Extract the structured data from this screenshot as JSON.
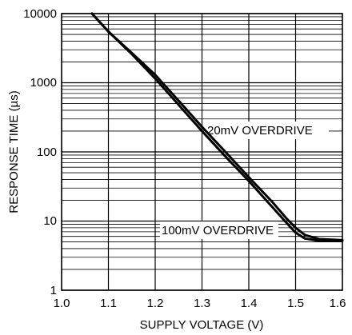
{
  "chart_data": {
    "type": "line",
    "xlabel": "SUPPLY VOLTAGE (V)",
    "ylabel": "RESPONSE TIME (µs)",
    "xlim": [
      1.0,
      1.6
    ],
    "ylim": [
      1,
      10000
    ],
    "yscale": "log",
    "grid": true,
    "x_ticks": [
      "1.0",
      "1.1",
      "1.2",
      "1.3",
      "1.4",
      "1.5",
      "1.6"
    ],
    "y_ticks": [
      "1",
      "10",
      "100",
      "1000",
      "10000"
    ],
    "series": [
      {
        "name": "20mV OVERDRIVE",
        "x": [
          1.065,
          1.1,
          1.15,
          1.2,
          1.25,
          1.3,
          1.35,
          1.4,
          1.45,
          1.48,
          1.5,
          1.52,
          1.55,
          1.6
        ],
        "y": [
          10000,
          5500,
          2700,
          1300,
          550,
          230,
          100,
          43,
          19,
          11,
          8,
          6.3,
          5.5,
          5.3
        ]
      },
      {
        "name": "100mV OVERDRIVE",
        "x": [
          1.065,
          1.1,
          1.15,
          1.2,
          1.25,
          1.3,
          1.35,
          1.4,
          1.45,
          1.48,
          1.5,
          1.52,
          1.55,
          1.6
        ],
        "y": [
          10000,
          5500,
          2600,
          1150,
          480,
          200,
          86,
          38,
          16,
          9.5,
          6.8,
          5.6,
          5.2,
          5.2
        ]
      }
    ]
  }
}
